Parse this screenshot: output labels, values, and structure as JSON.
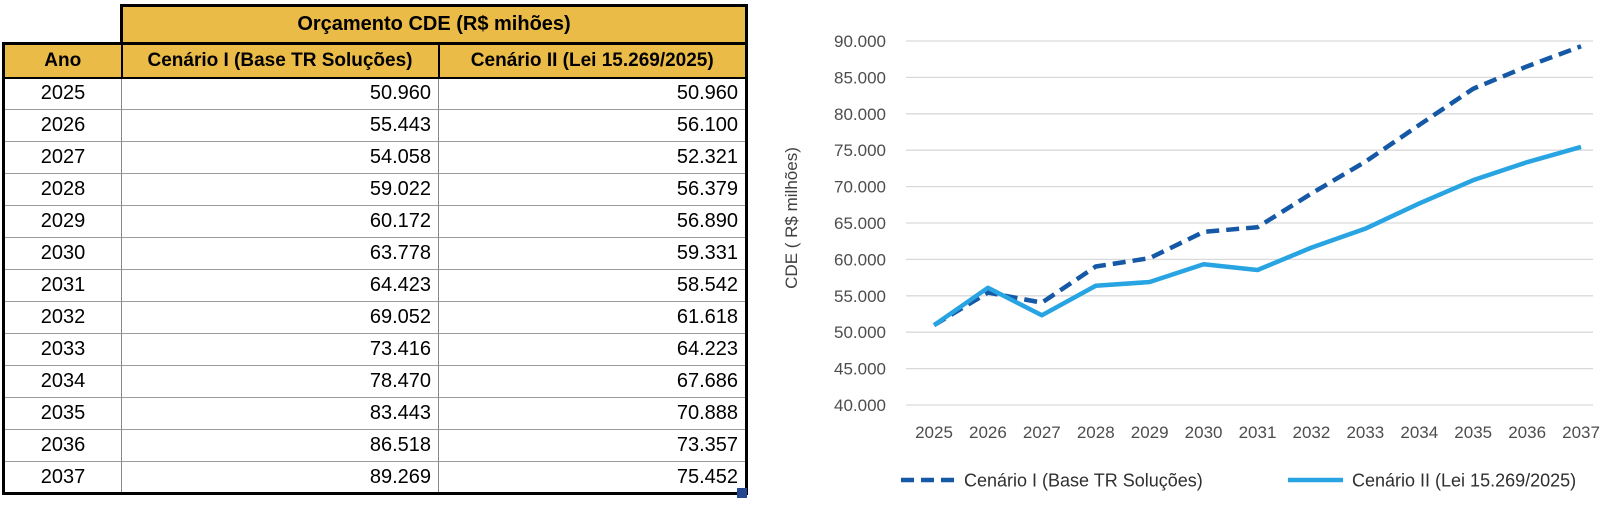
{
  "table": {
    "title": "Orçamento CDE (R$ mihões)",
    "columns": [
      "Ano",
      "Cenário I (Base TR Soluções)",
      "Cenário II (Lei 15.269/2025)"
    ],
    "rows": [
      [
        "2025",
        "50.960",
        "50.960"
      ],
      [
        "2026",
        "55.443",
        "56.100"
      ],
      [
        "2027",
        "54.058",
        "52.321"
      ],
      [
        "2028",
        "59.022",
        "56.379"
      ],
      [
        "2029",
        "60.172",
        "56.890"
      ],
      [
        "2030",
        "63.778",
        "59.331"
      ],
      [
        "2031",
        "64.423",
        "58.542"
      ],
      [
        "2032",
        "69.052",
        "61.618"
      ],
      [
        "2033",
        "73.416",
        "64.223"
      ],
      [
        "2034",
        "78.470",
        "67.686"
      ],
      [
        "2035",
        "83.443",
        "70.888"
      ],
      [
        "2036",
        "86.518",
        "73.357"
      ],
      [
        "2037",
        "89.269",
        "75.452"
      ]
    ]
  },
  "chart_data": {
    "type": "line",
    "categories": [
      "2025",
      "2026",
      "2027",
      "2028",
      "2029",
      "2030",
      "2031",
      "2032",
      "2033",
      "2034",
      "2035",
      "2036",
      "2037"
    ],
    "series": [
      {
        "name": "Cenário I (Base TR Soluções)",
        "style": "dashed",
        "color": "#1458A6",
        "values": [
          50960,
          55443,
          54058,
          59022,
          60172,
          63778,
          64423,
          69052,
          73416,
          78470,
          83443,
          86518,
          89269
        ]
      },
      {
        "name": "Cenário II (Lei 15.269/2025)",
        "style": "solid",
        "color": "#28A4E2",
        "values": [
          50960,
          56100,
          52321,
          56379,
          56890,
          59331,
          58542,
          61618,
          64223,
          67686,
          70888,
          73357,
          75452
        ]
      }
    ],
    "title": "",
    "xlabel": "",
    "ylabel": "CDE ( R$ milhões)",
    "ylim": [
      40000,
      90000
    ],
    "ytick_step": 5000,
    "grid": true,
    "legend_position": "bottom"
  },
  "colors": {
    "header_gold": "#EBBB47",
    "series1_dark_blue": "#1458A6",
    "series2_light_blue": "#28A4E2",
    "gridline_gray": "#D9D9D9",
    "axis_text_gray": "#4D4D4D",
    "fill_handle_blue": "#24478F",
    "table_border_black": "#000000"
  }
}
